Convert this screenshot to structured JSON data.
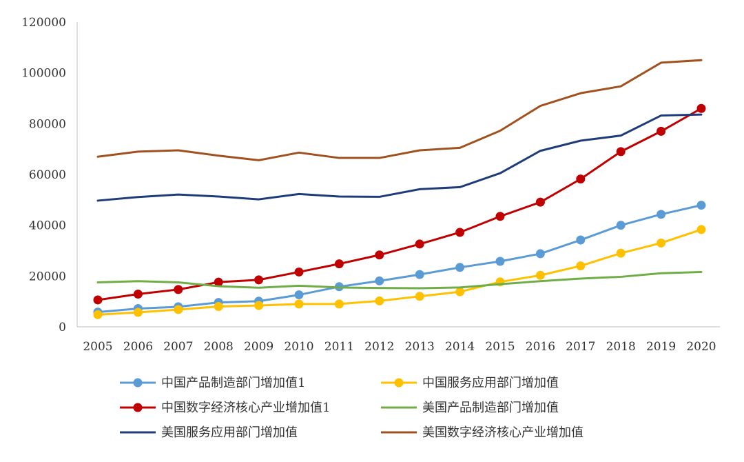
{
  "chart_data": {
    "type": "line",
    "title": "",
    "xlabel": "",
    "ylabel": "",
    "x": [
      "2005",
      "2006",
      "2007",
      "2008",
      "2009",
      "2010",
      "2011",
      "2012",
      "2013",
      "2014",
      "2015",
      "2016",
      "2017",
      "2018",
      "2019",
      "2020"
    ],
    "ylim": [
      0,
      120000
    ],
    "yticks": [
      0,
      20000,
      40000,
      60000,
      80000,
      100000,
      120000
    ],
    "ytick_labels": [
      "0",
      "20000",
      "40000",
      "60000",
      "80000",
      "100000",
      "120000"
    ],
    "grid": false,
    "legend_position": "bottom",
    "series": [
      {
        "name": "中国产品制造部门增加值1",
        "color": "#5b9bd5",
        "markers": true,
        "values": [
          5800,
          7200,
          7900,
          9600,
          10100,
          12600,
          15800,
          18100,
          20600,
          23400,
          25800,
          28800,
          34200,
          40000,
          44300,
          47900
        ]
      },
      {
        "name": "中国服务应用部门增加值",
        "color": "#ffc000",
        "markers": true,
        "values": [
          4800,
          5700,
          6800,
          8000,
          8400,
          9000,
          9000,
          10200,
          12000,
          13800,
          17700,
          20300,
          24000,
          29000,
          33000,
          38300
        ]
      },
      {
        "name": "中国数字经济核心产业增加值1",
        "color": "#c00000",
        "markers": true,
        "values": [
          10600,
          12900,
          14700,
          17600,
          18500,
          21600,
          24800,
          28300,
          32600,
          37200,
          43500,
          49100,
          58200,
          69000,
          77000,
          86000
        ]
      },
      {
        "name": "美国产品制造部门增加值",
        "color": "#70ad47",
        "markers": false,
        "values": [
          17500,
          18000,
          17500,
          16000,
          15400,
          16200,
          15500,
          15300,
          15200,
          15500,
          16800,
          18000,
          19000,
          19700,
          21100,
          21600
        ]
      },
      {
        "name": "美国服务应用部门增加值",
        "color": "#1f3c7a",
        "markers": false,
        "values": [
          49700,
          51100,
          52100,
          51300,
          50200,
          52300,
          51300,
          51200,
          54200,
          55000,
          60500,
          69300,
          73300,
          75300,
          83200,
          83600
        ]
      },
      {
        "name": "美国数字经济核心产业增加值",
        "color": "#a0511e",
        "markers": false,
        "values": [
          67000,
          69000,
          69500,
          67400,
          65600,
          68600,
          66500,
          66500,
          69500,
          70500,
          77200,
          87000,
          92000,
          94700,
          104000,
          105000
        ]
      }
    ]
  }
}
